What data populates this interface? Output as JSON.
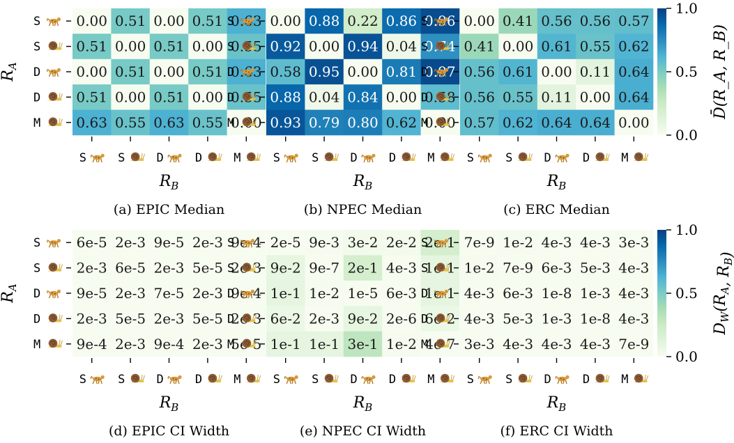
{
  "chart_data": [
    {
      "type": "heatmap",
      "panel": "(a) EPIC Median",
      "caption": "(a) EPIC Median",
      "row_labels": [
        "S",
        "S",
        "D",
        "D",
        "M"
      ],
      "row_icons": [
        "cheetah",
        "snail",
        "cheetah",
        "snail",
        "snail"
      ],
      "col_labels": [
        "S",
        "S",
        "D",
        "D",
        "M"
      ],
      "col_icons": [
        "cheetah",
        "snail",
        "cheetah",
        "snail",
        "snail"
      ],
      "ylabel": "R_A",
      "xlabel": "R_B",
      "values": [
        [
          0.0,
          0.51,
          0.0,
          0.51,
          0.63
        ],
        [
          0.51,
          0.0,
          0.51,
          0.0,
          0.55
        ],
        [
          0.0,
          0.51,
          0.0,
          0.51,
          0.63
        ],
        [
          0.51,
          0.0,
          0.51,
          0.0,
          0.55
        ],
        [
          0.63,
          0.55,
          0.63,
          0.55,
          0.0
        ]
      ],
      "labels": [
        [
          "0.00",
          "0.51",
          "0.00",
          "0.51",
          "0.63"
        ],
        [
          "0.51",
          "0.00",
          "0.51",
          "0.00",
          "0.55"
        ],
        [
          "0.00",
          "0.51",
          "0.00",
          "0.51",
          "0.63"
        ],
        [
          "0.51",
          "0.00",
          "0.51",
          "0.00",
          "0.55"
        ],
        [
          "0.63",
          "0.55",
          "0.63",
          "0.55",
          "0.00"
        ]
      ],
      "vmin": 0.0,
      "vmax": 1.0
    },
    {
      "type": "heatmap",
      "panel": "(b) NPEC Median",
      "caption": "(b) NPEC Median",
      "row_labels": [
        "S",
        "S",
        "D",
        "D",
        "M"
      ],
      "row_icons": [
        "cheetah",
        "snail",
        "cheetah",
        "snail",
        "snail"
      ],
      "col_labels": [
        "S",
        "S",
        "D",
        "D",
        "M"
      ],
      "col_icons": [
        "cheetah",
        "snail",
        "cheetah",
        "snail",
        "snail"
      ],
      "ylabel": "",
      "xlabel": "R_B",
      "values": [
        [
          0.0,
          0.88,
          0.22,
          0.86,
          0.96
        ],
        [
          0.92,
          0.0,
          0.94,
          0.04,
          0.74
        ],
        [
          0.58,
          0.95,
          0.0,
          0.81,
          0.97
        ],
        [
          0.88,
          0.04,
          0.84,
          0.0,
          0.58
        ],
        [
          0.93,
          0.79,
          0.8,
          0.62,
          0.0
        ]
      ],
      "labels": [
        [
          "0.00",
          "0.88",
          "0.22",
          "0.86",
          "0.96"
        ],
        [
          "0.92",
          "0.00",
          "0.94",
          "0.04",
          "0.74"
        ],
        [
          "0.58",
          "0.95",
          "0.00",
          "0.81",
          "0.97"
        ],
        [
          "0.88",
          "0.04",
          "0.84",
          "0.00",
          "0.58"
        ],
        [
          "0.93",
          "0.79",
          "0.80",
          "0.62",
          "0.00"
        ]
      ],
      "vmin": 0.0,
      "vmax": 1.0
    },
    {
      "type": "heatmap",
      "panel": "(c) ERC Median",
      "caption": "(c) ERC Median",
      "row_labels": [
        "S",
        "S",
        "D",
        "D",
        "M"
      ],
      "row_icons": [
        "cheetah",
        "snail",
        "cheetah",
        "snail",
        "snail"
      ],
      "col_labels": [
        "S",
        "S",
        "D",
        "D",
        "M"
      ],
      "col_icons": [
        "cheetah",
        "snail",
        "cheetah",
        "snail",
        "snail"
      ],
      "ylabel": "",
      "xlabel": "R_B",
      "values": [
        [
          0.0,
          0.41,
          0.56,
          0.56,
          0.57
        ],
        [
          0.41,
          0.0,
          0.61,
          0.55,
          0.62
        ],
        [
          0.56,
          0.61,
          0.0,
          0.11,
          0.64
        ],
        [
          0.56,
          0.55,
          0.11,
          0.0,
          0.64
        ],
        [
          0.57,
          0.62,
          0.64,
          0.64,
          0.0
        ]
      ],
      "labels": [
        [
          "0.00",
          "0.41",
          "0.56",
          "0.56",
          "0.57"
        ],
        [
          "0.41",
          "0.00",
          "0.61",
          "0.55",
          "0.62"
        ],
        [
          "0.56",
          "0.61",
          "0.00",
          "0.11",
          "0.64"
        ],
        [
          "0.56",
          "0.55",
          "0.11",
          "0.00",
          "0.64"
        ],
        [
          "0.57",
          "0.62",
          "0.64",
          "0.64",
          "0.00"
        ]
      ],
      "vmin": 0.0,
      "vmax": 1.0
    },
    {
      "type": "heatmap",
      "panel": "(d) EPIC CI Width",
      "caption": "(d) EPIC CI Width",
      "row_labels": [
        "S",
        "S",
        "D",
        "D",
        "M"
      ],
      "row_icons": [
        "cheetah",
        "snail",
        "cheetah",
        "snail",
        "snail"
      ],
      "col_labels": [
        "S",
        "S",
        "D",
        "D",
        "M"
      ],
      "col_icons": [
        "cheetah",
        "snail",
        "cheetah",
        "snail",
        "snail"
      ],
      "ylabel": "R_A",
      "xlabel": "R_B",
      "values": [
        [
          6e-05,
          0.002,
          9e-05,
          0.002,
          0.0009
        ],
        [
          0.002,
          6e-05,
          0.002,
          5e-05,
          0.002
        ],
        [
          9e-05,
          0.002,
          7e-05,
          0.002,
          0.0009
        ],
        [
          0.002,
          5e-05,
          0.002,
          5e-05,
          0.002
        ],
        [
          0.0009,
          0.002,
          0.0009,
          0.002,
          5e-05
        ]
      ],
      "labels": [
        [
          "6e-5",
          "2e-3",
          "9e-5",
          "2e-3",
          "9e-4"
        ],
        [
          "2e-3",
          "6e-5",
          "2e-3",
          "5e-5",
          "2e-3"
        ],
        [
          "9e-5",
          "2e-3",
          "7e-5",
          "2e-3",
          "9e-4"
        ],
        [
          "2e-3",
          "5e-5",
          "2e-3",
          "5e-5",
          "2e-3"
        ],
        [
          "9e-4",
          "2e-3",
          "9e-4",
          "2e-3",
          "5e-5"
        ]
      ],
      "vmin": 0.0,
      "vmax": 1.0
    },
    {
      "type": "heatmap",
      "panel": "(e) NPEC CI Width",
      "caption": "(e) NPEC CI Width",
      "row_labels": [
        "S",
        "S",
        "D",
        "D",
        "M"
      ],
      "row_icons": [
        "cheetah",
        "snail",
        "cheetah",
        "snail",
        "snail"
      ],
      "col_labels": [
        "S",
        "S",
        "D",
        "D",
        "M"
      ],
      "col_icons": [
        "cheetah",
        "snail",
        "cheetah",
        "snail",
        "snail"
      ],
      "ylabel": "",
      "xlabel": "R_B",
      "values": [
        [
          2e-05,
          0.009,
          0.03,
          0.02,
          0.2
        ],
        [
          0.09,
          9e-07,
          0.2,
          0.004,
          0.1
        ],
        [
          0.1,
          0.01,
          1e-05,
          0.006,
          0.1
        ],
        [
          0.06,
          0.002,
          0.09,
          2e-06,
          0.06
        ],
        [
          0.1,
          0.1,
          0.3,
          0.01,
          4e-07
        ]
      ],
      "labels": [
        [
          "2e-5",
          "9e-3",
          "3e-2",
          "2e-2",
          "2e-1"
        ],
        [
          "9e-2",
          "9e-7",
          "2e-1",
          "4e-3",
          "1e-1"
        ],
        [
          "1e-1",
          "1e-2",
          "1e-5",
          "6e-3",
          "1e-1"
        ],
        [
          "6e-2",
          "2e-3",
          "9e-2",
          "2e-6",
          "6e-2"
        ],
        [
          "1e-1",
          "1e-1",
          "3e-1",
          "1e-2",
          "4e-7"
        ]
      ],
      "vmin": 0.0,
      "vmax": 1.0
    },
    {
      "type": "heatmap",
      "panel": "(f) ERC CI Width",
      "caption": "(f) ERC CI Width",
      "row_labels": [
        "S",
        "S",
        "D",
        "D",
        "M"
      ],
      "row_icons": [
        "cheetah",
        "snail",
        "cheetah",
        "snail",
        "snail"
      ],
      "col_labels": [
        "S",
        "S",
        "D",
        "D",
        "M"
      ],
      "col_icons": [
        "cheetah",
        "snail",
        "cheetah",
        "snail",
        "snail"
      ],
      "ylabel": "",
      "xlabel": "R_B",
      "values": [
        [
          7e-09,
          0.01,
          0.004,
          0.004,
          0.003
        ],
        [
          0.01,
          7e-09,
          0.006,
          0.005,
          0.004
        ],
        [
          0.004,
          0.006,
          1e-08,
          0.001,
          0.004
        ],
        [
          0.004,
          0.005,
          0.001,
          1e-08,
          0.004
        ],
        [
          0.003,
          0.004,
          0.004,
          0.004,
          7e-09
        ]
      ],
      "labels": [
        [
          "7e-9",
          "1e-2",
          "4e-3",
          "4e-3",
          "3e-3"
        ],
        [
          "1e-2",
          "7e-9",
          "6e-3",
          "5e-3",
          "4e-3"
        ],
        [
          "4e-3",
          "6e-3",
          "1e-8",
          "1e-3",
          "4e-3"
        ],
        [
          "4e-3",
          "5e-3",
          "1e-3",
          "1e-8",
          "4e-3"
        ],
        [
          "3e-3",
          "4e-3",
          "4e-3",
          "4e-3",
          "7e-9"
        ]
      ],
      "vmin": 0.0,
      "vmax": 1.0
    }
  ],
  "colorbars": [
    {
      "label": "D̄(R_A, R_B)",
      "ticks": [
        "1.0",
        "0.5",
        "0.0"
      ],
      "tick_values": [
        1.0,
        0.5,
        0.0
      ]
    },
    {
      "label": "D_W(R_A, R_B)",
      "ticks": [
        "1.0",
        "0.5",
        "0.0"
      ],
      "tick_values": [
        1.0,
        0.5,
        0.0
      ]
    }
  ],
  "colormap": "GnBu",
  "colors": {
    "low": "#f7fcf0",
    "mid": "#7bccc4",
    "high": "#084081"
  }
}
